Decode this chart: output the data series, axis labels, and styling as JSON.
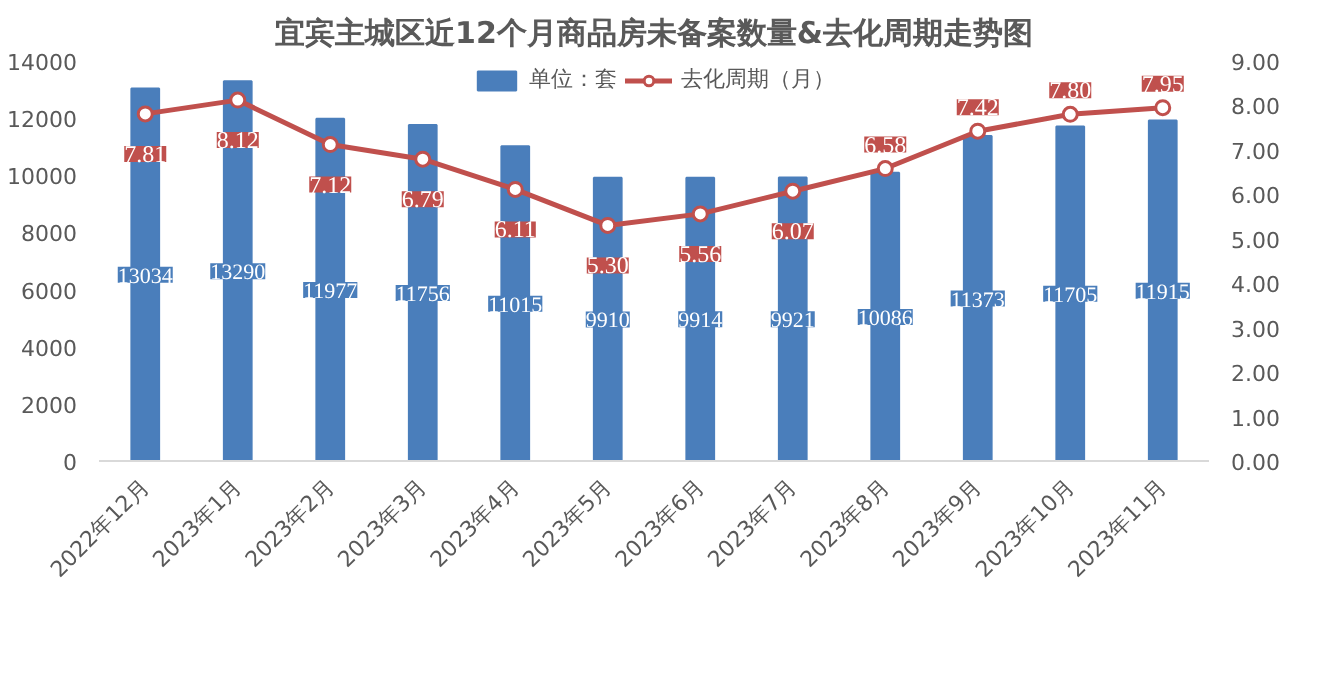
{
  "chart_data": {
    "type": "bar",
    "title": "宜宾主城区近12个月商品房未备案数量&去化周期走势图",
    "categories": [
      "2022年12月",
      "2023年1月",
      "2023年2月",
      "2023年3月",
      "2023年4月",
      "2023年5月",
      "2023年6月",
      "2023年7月",
      "2023年8月",
      "2023年9月",
      "2023年10月",
      "2023年11月"
    ],
    "series": [
      {
        "name": "单位：套",
        "color": "#4a7ebb",
        "values": [
          13034,
          13290,
          11977,
          11756,
          11015,
          9910,
          9914,
          9921,
          10086,
          11373,
          11705,
          11915
        ],
        "data_labels": true
      },
      {
        "name": "去化周期（月）",
        "type": "line",
        "axis": "y2",
        "color": "#c0504d",
        "marker": "circle",
        "values": [
          7.81,
          8.12,
          7.12,
          6.79,
          6.11,
          5.3,
          5.56,
          6.07,
          6.58,
          7.42,
          7.8,
          7.95
        ],
        "value_labels": [
          "7.81",
          "8.12",
          "7.12",
          "6.79",
          "6.11",
          "5.30",
          "5.56",
          "6.07",
          "6.58",
          "7.42",
          "7.80",
          "7.95"
        ]
      }
    ],
    "ylim": [
      0,
      14000
    ],
    "yticks": [
      0,
      2000,
      4000,
      6000,
      8000,
      10000,
      12000,
      14000
    ],
    "y2lim": [
      0,
      9
    ],
    "y2ticks": [
      {
        "value": 0,
        "label": "0.00"
      },
      {
        "value": 1,
        "label": "1.00"
      },
      {
        "value": 2,
        "label": "2.00"
      },
      {
        "value": 3,
        "label": "3.00"
      },
      {
        "value": 4,
        "label": "4.00"
      },
      {
        "value": 5,
        "label": "5.00"
      },
      {
        "value": 6,
        "label": "6.00"
      },
      {
        "value": 7,
        "label": "7.00"
      },
      {
        "value": 8,
        "label": "8.00"
      },
      {
        "value": 9,
        "label": "9.00"
      }
    ],
    "legend": "top",
    "grid": false
  }
}
